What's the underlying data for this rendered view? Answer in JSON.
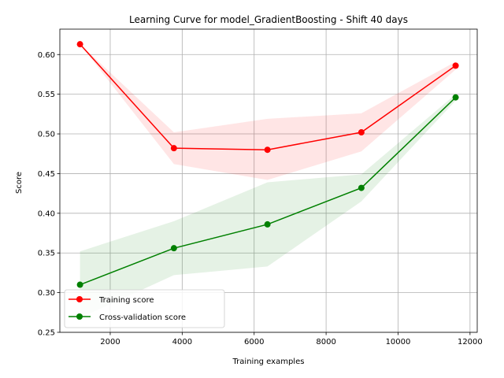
{
  "chart_data": {
    "type": "line",
    "title": "Learning Curve for model_GradientBoosting - Shift 40 days",
    "xlabel": "Training examples",
    "ylabel": "Score",
    "xlim": [
      600,
      12200
    ],
    "ylim": [
      0.25,
      0.632
    ],
    "x_ticks": [
      2000,
      4000,
      6000,
      8000,
      10000,
      12000
    ],
    "y_ticks": [
      0.25,
      0.3,
      0.35,
      0.4,
      0.45,
      0.5,
      0.55,
      0.6
    ],
    "x_tick_labels": [
      "2000",
      "4000",
      "6000",
      "8000",
      "10000",
      "12000"
    ],
    "y_tick_labels": [
      "0.25",
      "0.30",
      "0.35",
      "0.40",
      "0.45",
      "0.50",
      "0.55",
      "0.60"
    ],
    "grid": true,
    "legend_position": "lower-left",
    "x": [
      1160,
      3770,
      6370,
      8980,
      11600
    ],
    "series": [
      {
        "name": "Training score",
        "color": "#ff0000",
        "band_color": "#ffcccc",
        "values": [
          0.613,
          0.482,
          0.48,
          0.502,
          0.586
        ],
        "upper": [
          0.613,
          0.502,
          0.519,
          0.526,
          0.591
        ],
        "lower": [
          0.613,
          0.462,
          0.442,
          0.478,
          0.581
        ]
      },
      {
        "name": "Cross-validation score",
        "color": "#008000",
        "band_color": "#cce6cc",
        "values": [
          0.31,
          0.356,
          0.386,
          0.432,
          0.546
        ],
        "upper": [
          0.352,
          0.39,
          0.439,
          0.449,
          0.55
        ],
        "lower": [
          0.268,
          0.322,
          0.333,
          0.415,
          0.542
        ]
      }
    ]
  }
}
